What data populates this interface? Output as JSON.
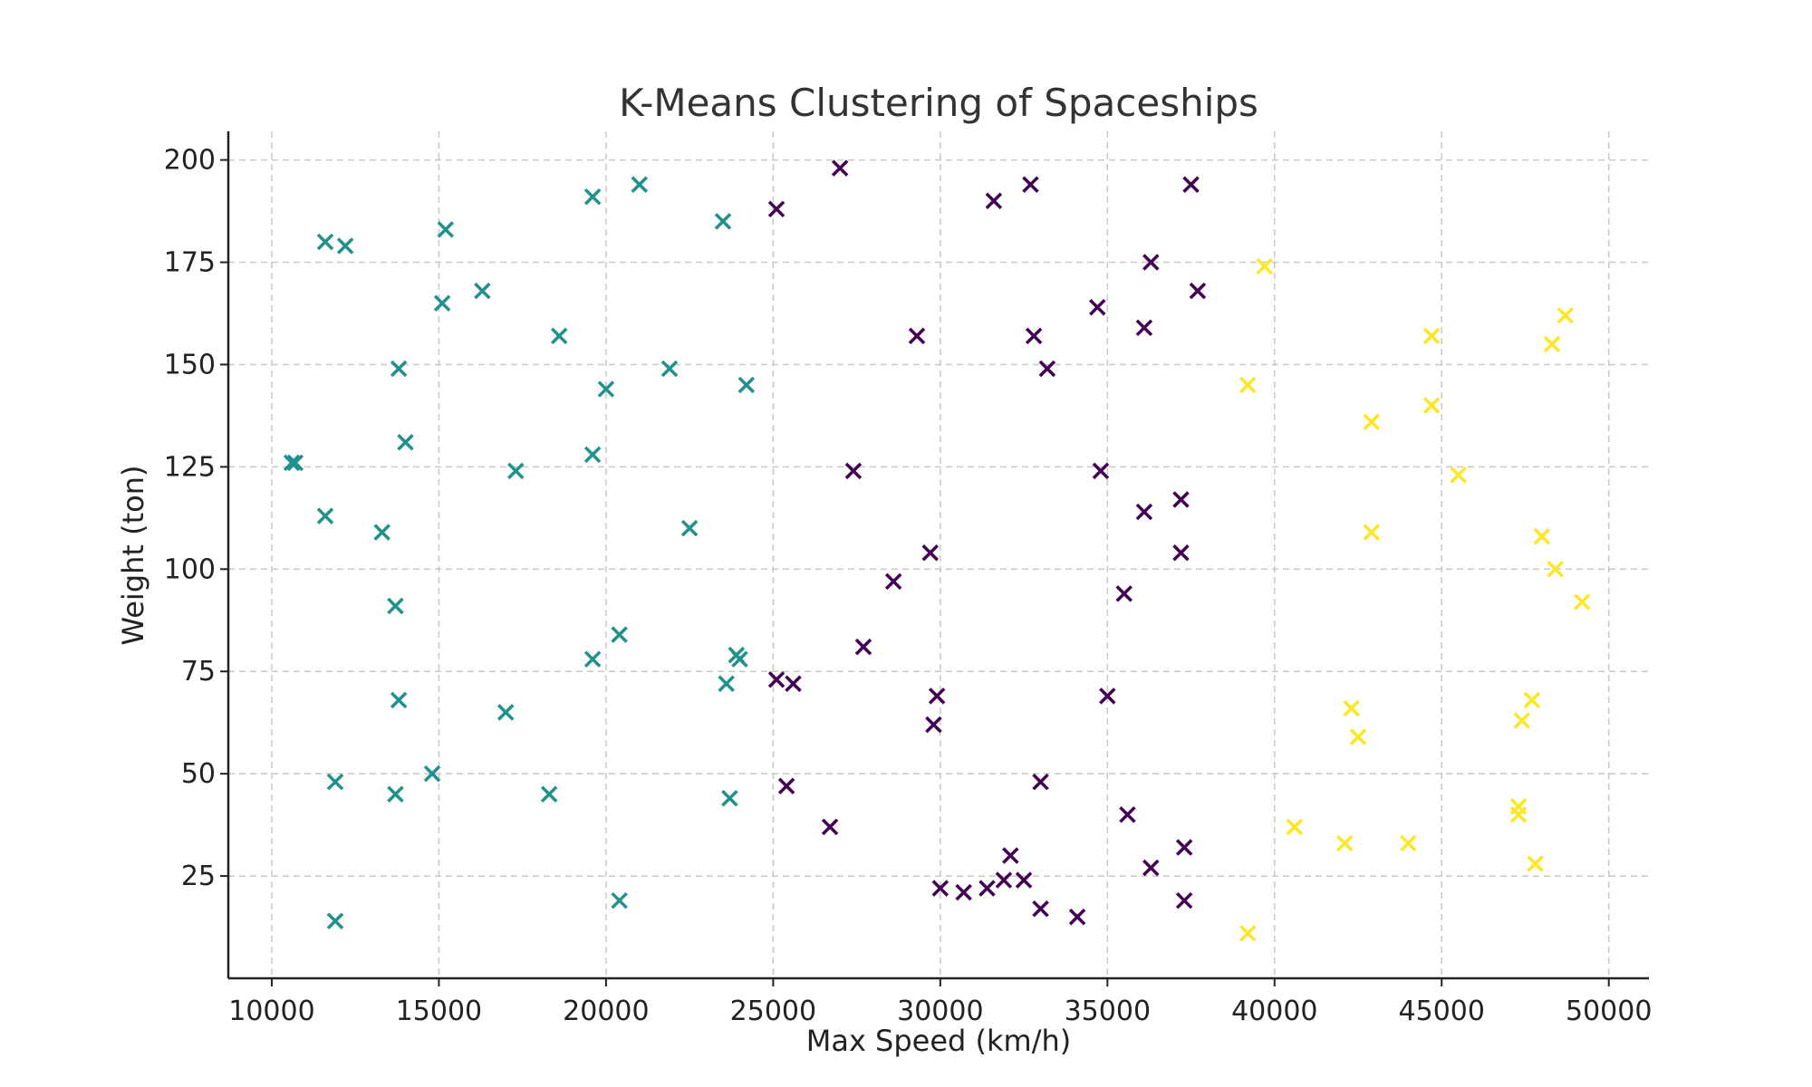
{
  "chart_data": {
    "type": "scatter",
    "title": "K-Means Clustering of Spaceships",
    "xlabel": "Max Speed (km/h)",
    "ylabel": "Weight (ton)",
    "xlim": [
      8700,
      51200
    ],
    "ylim": [
      0,
      207
    ],
    "xticks": [
      10000,
      15000,
      20000,
      25000,
      30000,
      35000,
      40000,
      45000,
      50000
    ],
    "yticks": [
      25,
      50,
      75,
      100,
      125,
      150,
      175,
      200
    ],
    "grid": true,
    "marker": "x",
    "series": [
      {
        "color": "#21918c",
        "points": [
          [
            10600,
            126
          ],
          [
            10700,
            126
          ],
          [
            11600,
            180
          ],
          [
            12200,
            179
          ],
          [
            11600,
            113
          ],
          [
            11900,
            48
          ],
          [
            11900,
            14
          ],
          [
            13300,
            109
          ],
          [
            13700,
            91
          ],
          [
            13700,
            45
          ],
          [
            13800,
            68
          ],
          [
            13800,
            149
          ],
          [
            14000,
            131
          ],
          [
            14800,
            50
          ],
          [
            15100,
            165
          ],
          [
            15200,
            183
          ],
          [
            16300,
            168
          ],
          [
            17000,
            65
          ],
          [
            17300,
            124
          ],
          [
            18300,
            45
          ],
          [
            18600,
            157
          ],
          [
            19600,
            191
          ],
          [
            19600,
            128
          ],
          [
            19600,
            78
          ],
          [
            20000,
            144
          ],
          [
            20400,
            84
          ],
          [
            20400,
            19
          ],
          [
            21000,
            194
          ],
          [
            21900,
            149
          ],
          [
            22500,
            110
          ],
          [
            23500,
            185
          ],
          [
            23600,
            72
          ],
          [
            23700,
            44
          ],
          [
            23900,
            79
          ],
          [
            24000,
            78
          ],
          [
            24200,
            145
          ]
        ]
      },
      {
        "color": "#440154",
        "points": [
          [
            25100,
            188
          ],
          [
            25100,
            73
          ],
          [
            25600,
            72
          ],
          [
            25400,
            47
          ],
          [
            26700,
            37
          ],
          [
            27000,
            198
          ],
          [
            27400,
            124
          ],
          [
            27700,
            81
          ],
          [
            28600,
            97
          ],
          [
            29300,
            157
          ],
          [
            29700,
            104
          ],
          [
            29900,
            69
          ],
          [
            29800,
            62
          ],
          [
            30000,
            22
          ],
          [
            30700,
            21
          ],
          [
            31400,
            22
          ],
          [
            31600,
            190
          ],
          [
            31900,
            24
          ],
          [
            32100,
            30
          ],
          [
            32500,
            24
          ],
          [
            32700,
            194
          ],
          [
            32800,
            157
          ],
          [
            33000,
            17
          ],
          [
            33000,
            48
          ],
          [
            33200,
            149
          ],
          [
            34100,
            15
          ],
          [
            34700,
            164
          ],
          [
            34800,
            124
          ],
          [
            35000,
            69
          ],
          [
            35500,
            94
          ],
          [
            35600,
            40
          ],
          [
            36100,
            159
          ],
          [
            36100,
            114
          ],
          [
            36300,
            27
          ],
          [
            36300,
            175
          ],
          [
            37200,
            117
          ],
          [
            37200,
            104
          ],
          [
            37300,
            32
          ],
          [
            37300,
            19
          ],
          [
            37500,
            194
          ],
          [
            37700,
            168
          ]
        ]
      },
      {
        "color": "#fde725",
        "points": [
          [
            39200,
            145
          ],
          [
            39200,
            11
          ],
          [
            39700,
            174
          ],
          [
            40600,
            37
          ],
          [
            42100,
            33
          ],
          [
            42300,
            66
          ],
          [
            42500,
            59
          ],
          [
            42900,
            136
          ],
          [
            42900,
            109
          ],
          [
            44000,
            33
          ],
          [
            44700,
            157
          ],
          [
            44700,
            140
          ],
          [
            45500,
            123
          ],
          [
            47300,
            42
          ],
          [
            47300,
            40
          ],
          [
            47400,
            63
          ],
          [
            47700,
            68
          ],
          [
            47800,
            28
          ],
          [
            48000,
            108
          ],
          [
            48300,
            155
          ],
          [
            48400,
            100
          ],
          [
            48700,
            162
          ],
          [
            49200,
            92
          ]
        ]
      }
    ]
  }
}
